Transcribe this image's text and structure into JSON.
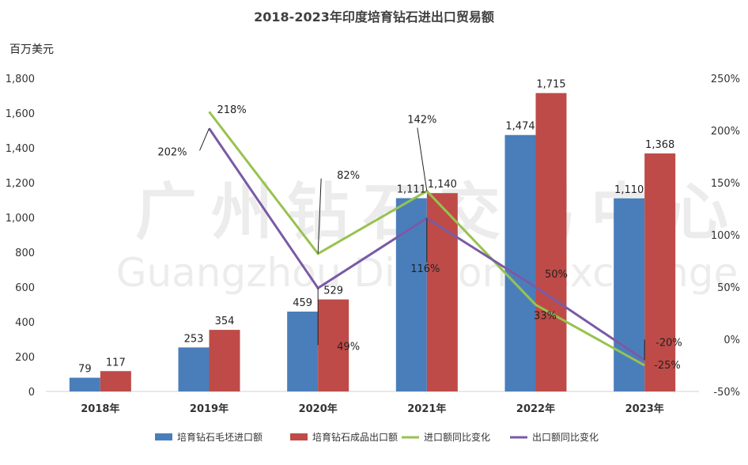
{
  "chart_data": {
    "type": "bar",
    "title": "2018-2023年印度培育钻石进出口贸易额",
    "y_unit_label": "百万美元",
    "categories": [
      "2018年",
      "2019年",
      "2020年",
      "2021年",
      "2022年",
      "2023年"
    ],
    "y_left": {
      "min": 0,
      "max": 1800,
      "step": 200,
      "tick_labels": [
        "0",
        "200",
        "400",
        "600",
        "800",
        "1,000",
        "1,200",
        "1,400",
        "1,600",
        "1,800"
      ]
    },
    "y_right": {
      "min": -50,
      "max": 250,
      "step": 50,
      "tick_labels": [
        "-50%",
        "0%",
        "50%",
        "100%",
        "150%",
        "200%",
        "250%"
      ]
    },
    "series": [
      {
        "name": "培育钻石毛坯进口额",
        "kind": "bar",
        "axis": "left",
        "color": "#4a7ebb",
        "values": [
          79,
          253,
          459,
          1111,
          1474,
          1110
        ],
        "labels": [
          "79",
          "253",
          "459",
          "1,111",
          "1,474",
          "1,110"
        ]
      },
      {
        "name": "培育钻石成品出口额",
        "kind": "bar",
        "axis": "left",
        "color": "#be4b48",
        "values": [
          117,
          354,
          529,
          1140,
          1715,
          1368
        ],
        "labels": [
          "117",
          "354",
          "529",
          "1,140",
          "1,715",
          "1,368"
        ]
      },
      {
        "name": "进口额同比变化",
        "kind": "line",
        "axis": "right",
        "color": "#98c24f",
        "values": [
          null,
          218,
          82,
          142,
          33,
          -25
        ],
        "labels": [
          "",
          "218%",
          "82%",
          "142%",
          "33%",
          "-25%"
        ]
      },
      {
        "name": "出口额同比变化",
        "kind": "line",
        "axis": "right",
        "color": "#7a5aa6",
        "values": [
          null,
          202,
          49,
          116,
          50,
          -20
        ],
        "labels": [
          "",
          "202%",
          "49%",
          "116%",
          "50%",
          "-20%"
        ]
      }
    ],
    "legend_position": "bottom",
    "grid": false,
    "watermark": {
      "line1": "广州钻石交易中心",
      "line2": "Guangzhou Diamond Exchange"
    }
  }
}
